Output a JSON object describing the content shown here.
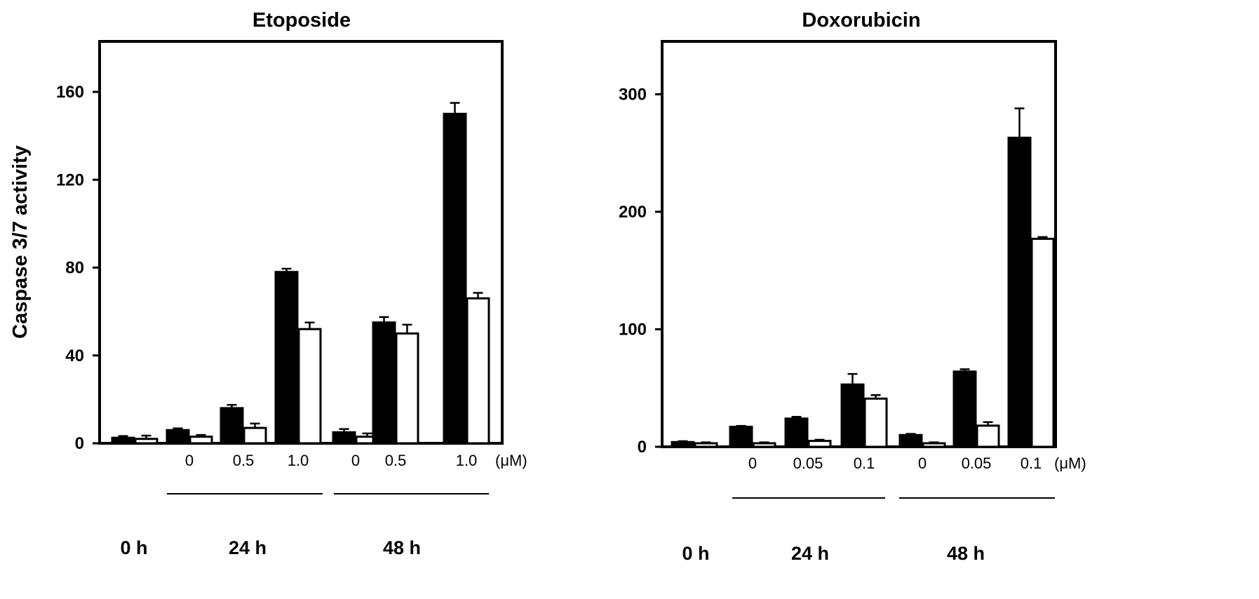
{
  "ylabel": "Caspase 3/7 activity",
  "chart_data": [
    {
      "type": "bar",
      "title": "Etoposide",
      "ylabel": "Caspase 3/7 activity",
      "ylim": [
        0,
        183
      ],
      "yticks": [
        0,
        40,
        80,
        120,
        160
      ],
      "unit_label": "(μM)",
      "groups": [
        {
          "time": "0 h",
          "concentration": "",
          "values": [
            2.5,
            2
          ],
          "errors": [
            0.8,
            1.5
          ]
        },
        {
          "time": "24 h",
          "concentration": "0",
          "values": [
            6,
            3
          ],
          "errors": [
            0.8,
            0.8
          ]
        },
        {
          "time": "24 h",
          "concentration": "0.5",
          "values": [
            16,
            7
          ],
          "errors": [
            1.5,
            2
          ]
        },
        {
          "time": "24 h",
          "concentration": "1.0",
          "values": [
            78,
            52
          ],
          "errors": [
            1.5,
            3
          ]
        },
        {
          "time": "48 h",
          "concentration": "0",
          "values": [
            5,
            3
          ],
          "errors": [
            1.5,
            1.5
          ]
        },
        {
          "time": "48 h",
          "concentration": "0.5",
          "values": [
            55,
            50
          ],
          "errors": [
            2.5,
            4
          ]
        },
        {
          "time": "48 h",
          "concentration": "1.0",
          "values": [
            150,
            66
          ],
          "errors": [
            5,
            2.5
          ]
        }
      ],
      "series": [
        {
          "fill": "#000000",
          "values": [
            2.5,
            6,
            16,
            78,
            5,
            55,
            150
          ]
        },
        {
          "fill": "#ffffff",
          "values": [
            2,
            3,
            7,
            52,
            3,
            50,
            66
          ]
        }
      ],
      "time_labels": [
        "0 h",
        "24 h",
        "48 h"
      ]
    },
    {
      "type": "bar",
      "title": "Doxorubicin",
      "ylabel": "",
      "ylim": [
        0,
        345
      ],
      "yticks": [
        0,
        100,
        200,
        300
      ],
      "unit_label": "(μM)",
      "groups": [
        {
          "time": "0 h",
          "concentration": "",
          "values": [
            4,
            3
          ],
          "errors": [
            0.8,
            0.8
          ]
        },
        {
          "time": "24 h",
          "concentration": "0",
          "values": [
            17,
            3
          ],
          "errors": [
            0.8,
            0.8
          ]
        },
        {
          "time": "24 h",
          "concentration": "0.05",
          "values": [
            24,
            5
          ],
          "errors": [
            1.5,
            1
          ]
        },
        {
          "time": "24 h",
          "concentration": "0.1",
          "values": [
            53,
            41
          ],
          "errors": [
            9,
            3
          ]
        },
        {
          "time": "48 h",
          "concentration": "0",
          "values": [
            10,
            3
          ],
          "errors": [
            1,
            0.8
          ]
        },
        {
          "time": "48 h",
          "concentration": "0.05",
          "values": [
            64,
            18
          ],
          "errors": [
            2,
            3
          ]
        },
        {
          "time": "48 h",
          "concentration": "0.1",
          "values": [
            263,
            177
          ],
          "errors": [
            25,
            1.5
          ]
        }
      ],
      "series": [
        {
          "fill": "#000000",
          "values": [
            4,
            17,
            24,
            53,
            10,
            64,
            263
          ]
        },
        {
          "fill": "#ffffff",
          "values": [
            3,
            3,
            5,
            41,
            3,
            18,
            177
          ]
        }
      ],
      "time_labels": [
        "0 h",
        "24 h",
        "48 h"
      ]
    }
  ]
}
